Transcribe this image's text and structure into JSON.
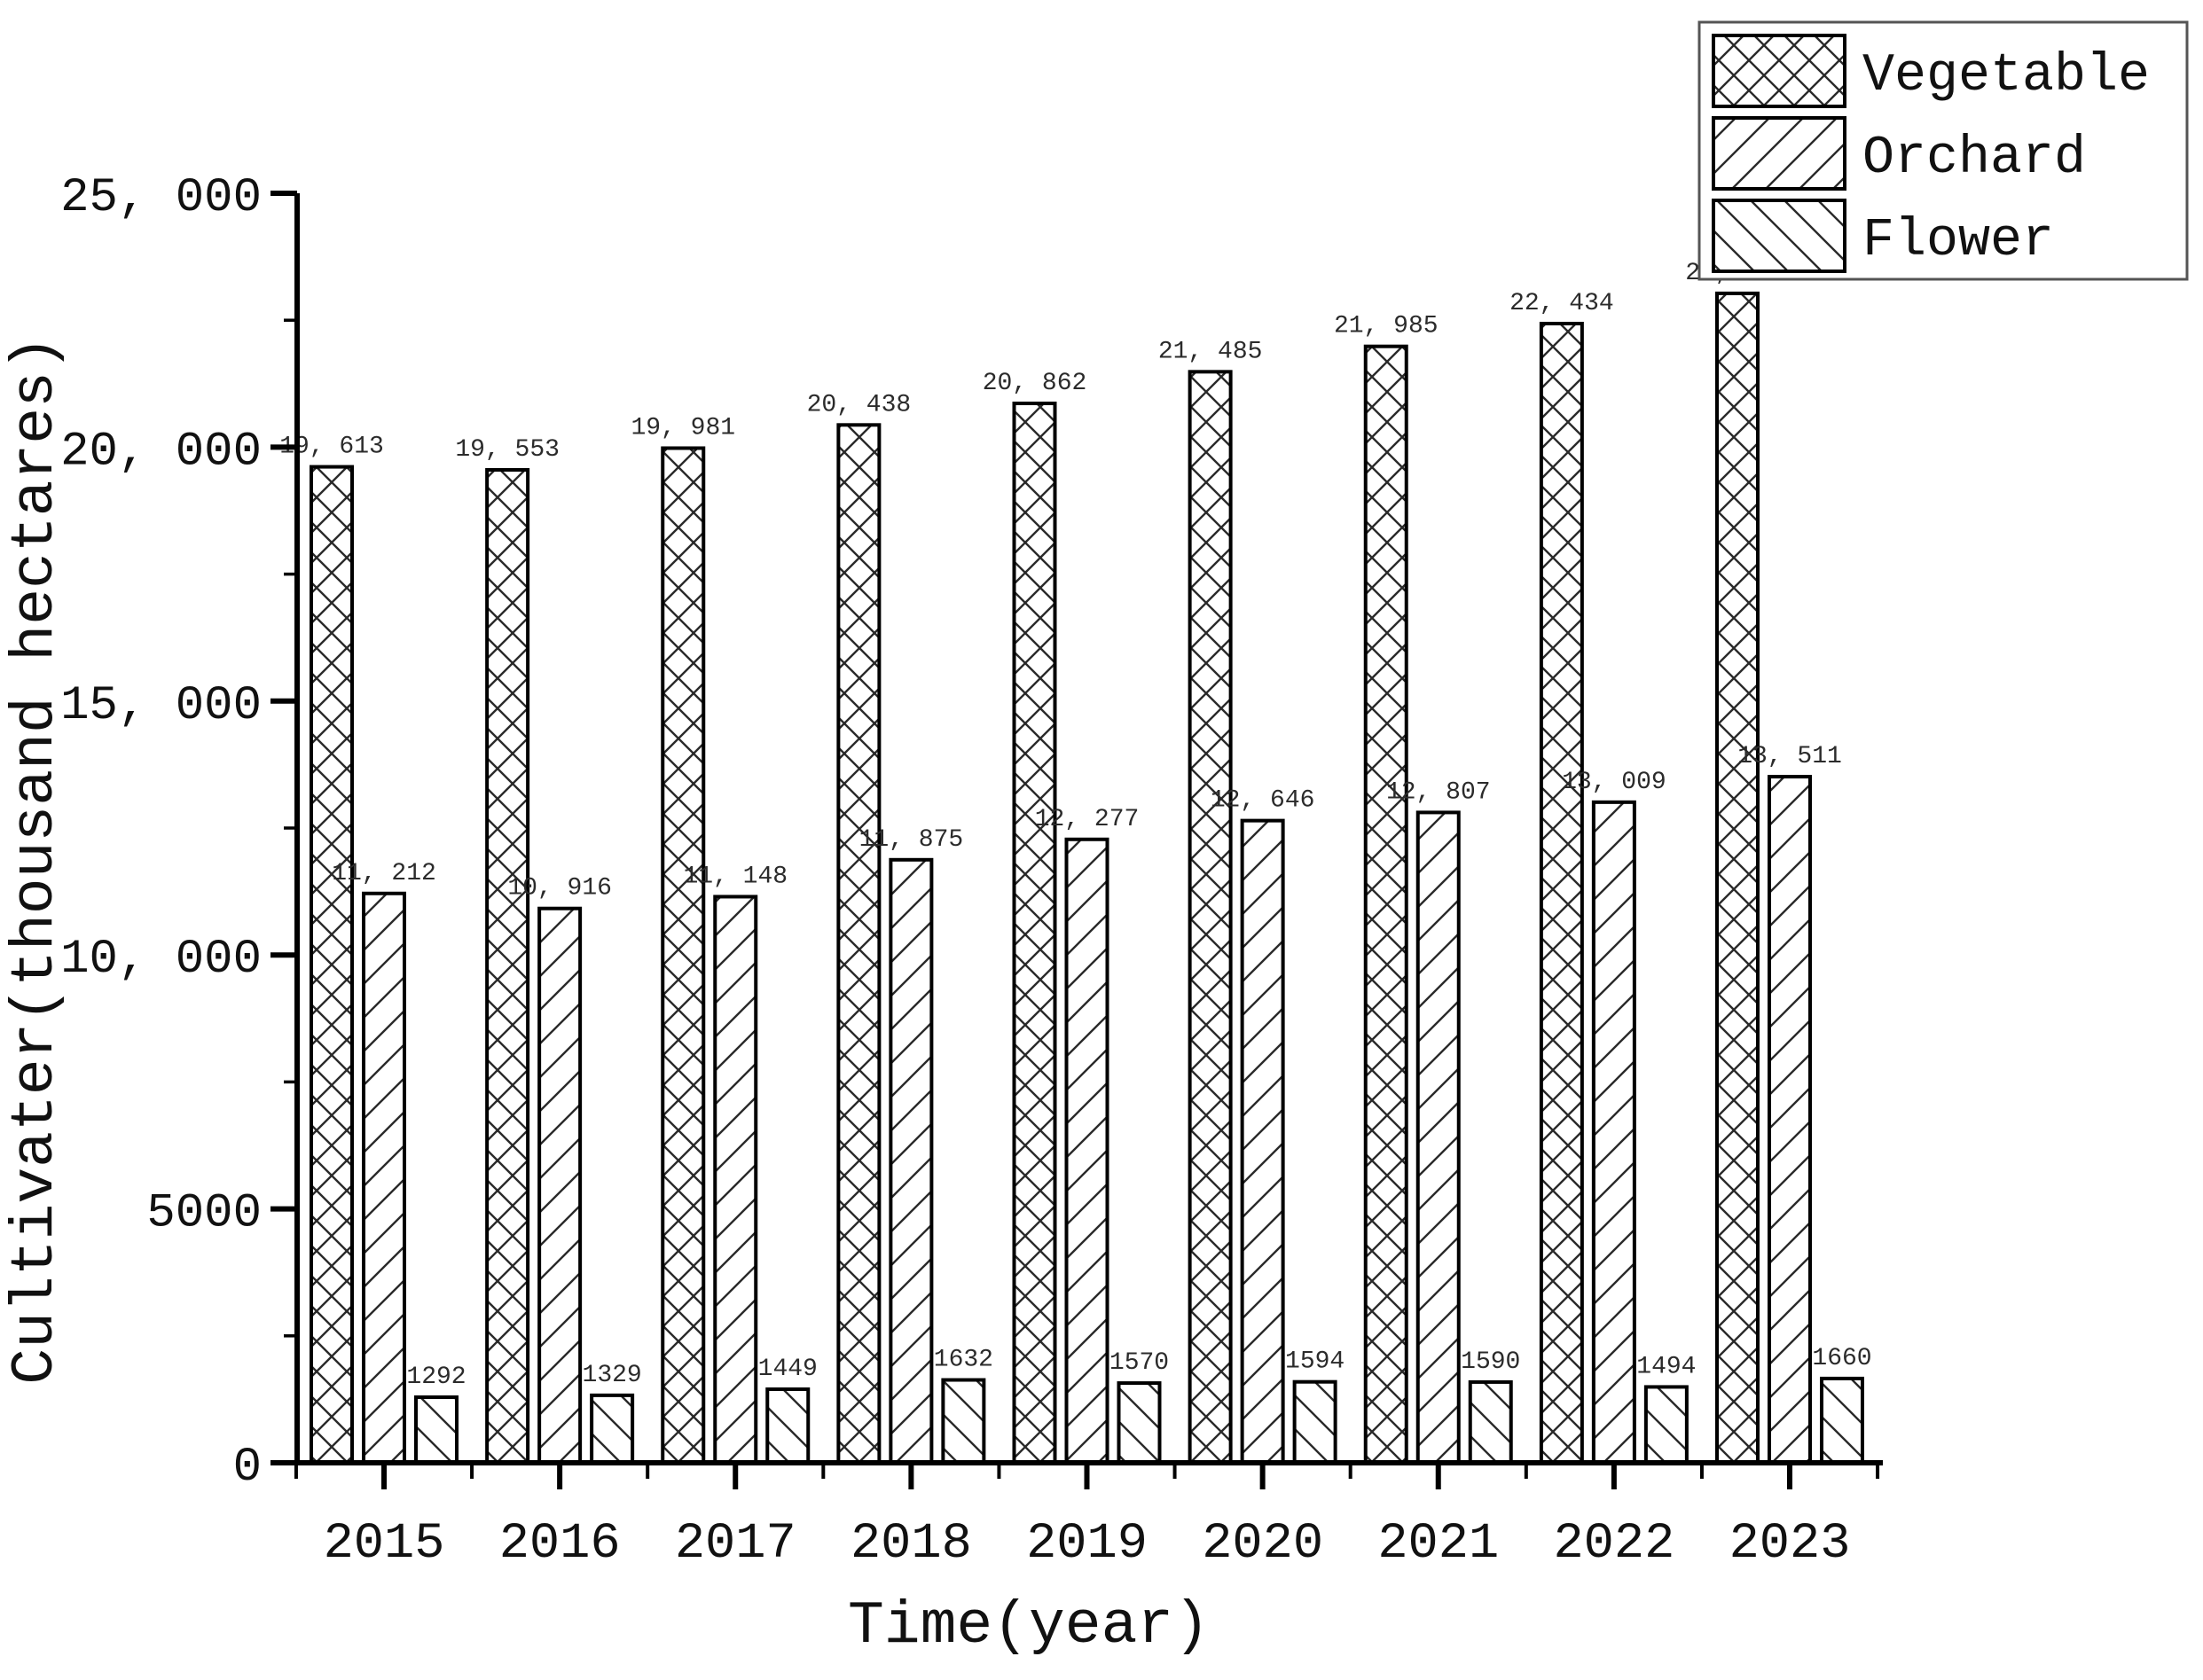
{
  "colors": {
    "ink": "#111111",
    "bar_stroke": "#000000",
    "hatch": "#2a2a2a",
    "label_text": "#2b2b2b",
    "background": "#ffffff",
    "legend_border": "#555555"
  },
  "chart_data": {
    "type": "bar",
    "title": "",
    "xlabel": "Time(year)",
    "ylabel": "Cultivater(thousand hectares)",
    "categories": [
      "2015",
      "2016",
      "2017",
      "2018",
      "2019",
      "2020",
      "2021",
      "2022",
      "2023"
    ],
    "series": [
      {
        "name": "Vegetable",
        "pattern": "crosshatch",
        "values": [
          19613,
          19553,
          19981,
          20438,
          20862,
          21485,
          21985,
          22434,
          23029
        ],
        "labels": [
          "19, 613",
          "19, 553",
          "19, 981",
          "20, 438",
          "20, 862",
          "21, 485",
          "21, 985",
          "22, 434",
          "23, 029"
        ]
      },
      {
        "name": "Orchard",
        "pattern": "diagonal-forward",
        "values": [
          11212,
          10916,
          11148,
          11875,
          12277,
          12646,
          12807,
          13009,
          13511
        ],
        "labels": [
          "11, 212",
          "10, 916",
          "11, 148",
          "11, 875",
          "12, 277",
          "12, 646",
          "12, 807",
          "13, 009",
          "13, 511"
        ]
      },
      {
        "name": "Flower",
        "pattern": "diagonal-backward",
        "values": [
          1292,
          1329,
          1449,
          1632,
          1570,
          1594,
          1590,
          1494,
          1660
        ],
        "labels": [
          "1292",
          "1329",
          "1449",
          "1632",
          "1570",
          "1594",
          "1590",
          "1494",
          "1660"
        ]
      }
    ],
    "ylim": [
      0,
      25000
    ],
    "ytick_values": [
      0,
      5000,
      10000,
      15000,
      20000,
      25000
    ],
    "ytick_labels": [
      "0",
      "5000",
      "10, 000",
      "15, 000",
      "20, 000",
      "25, 000"
    ],
    "yminor_step": 2500,
    "grid": false,
    "legend_position": "top-right",
    "legend_entries": [
      "Vegetable",
      "Orchard",
      "Flower"
    ]
  }
}
